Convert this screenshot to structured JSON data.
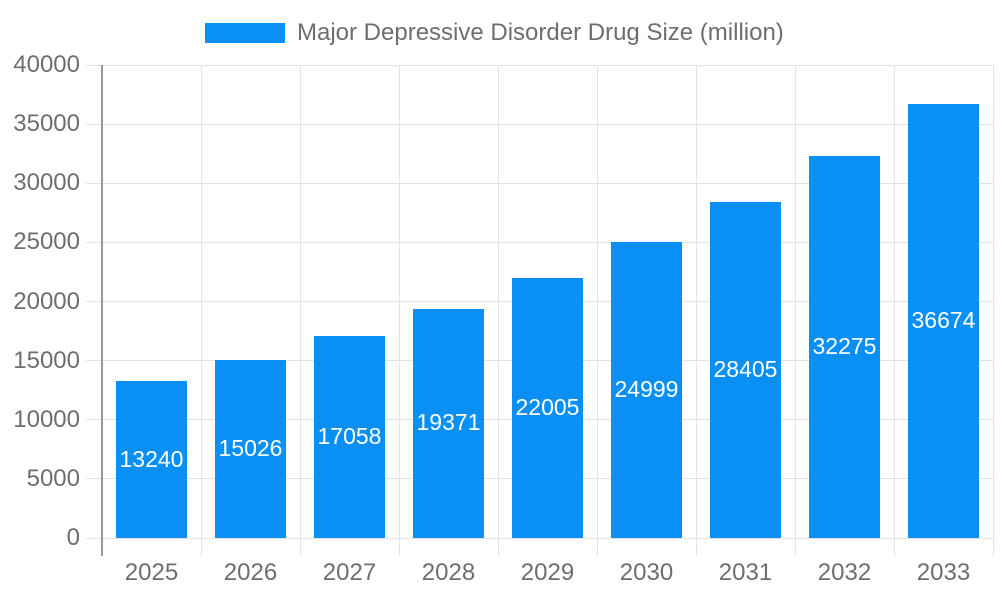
{
  "chart_data": {
    "type": "bar",
    "title": "Major Depressive Disorder Drug Size (million)",
    "legend": [
      "Major Depressive Disorder Drug Size (million)"
    ],
    "legend_position": "top",
    "categories": [
      "2025",
      "2026",
      "2027",
      "2028",
      "2029",
      "2030",
      "2031",
      "2032",
      "2033"
    ],
    "values": [
      13240,
      15026,
      17058,
      19371,
      22005,
      24999,
      28405,
      32275,
      36674
    ],
    "xlabel": "",
    "ylabel": "",
    "ylim": [
      0,
      40000
    ],
    "ytick_step": 5000,
    "yticks": [
      0,
      5000,
      10000,
      15000,
      20000,
      25000,
      30000,
      35000,
      40000
    ],
    "grid": true,
    "bar_value_labels_inside": true,
    "colors": {
      "bar": "#0a8ff5",
      "bar_label_text": "#ffffff",
      "axis_text": "#6e6e6e",
      "grid_line": "#e3e3e3",
      "axis_line": "#999999",
      "background": "#ffffff"
    }
  }
}
